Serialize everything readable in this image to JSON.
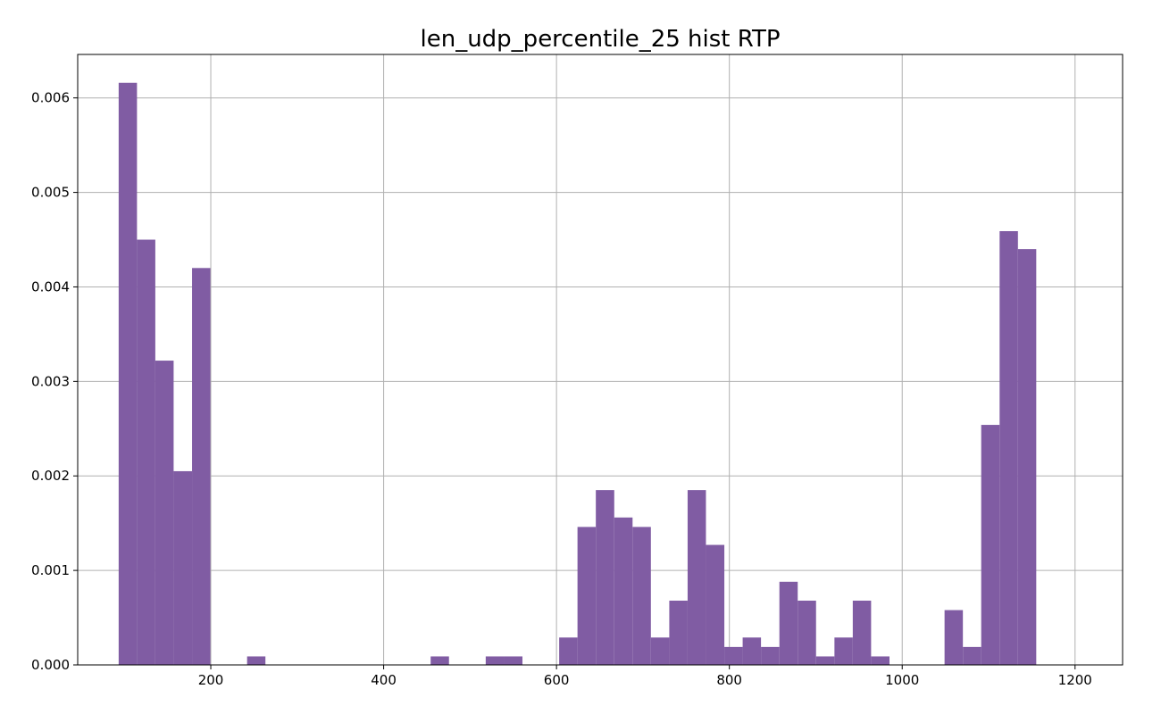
{
  "chart_data": {
    "type": "bar",
    "title": "len_udp_percentile_25 hist RTP",
    "xlabel": "",
    "ylabel": "",
    "xlim": [
      46,
      1255
    ],
    "ylim": [
      0,
      0.00646
    ],
    "grid": true,
    "bar_color": "#805ca3",
    "x_ticks": [
      {
        "value": 200,
        "label": "200"
      },
      {
        "value": 400,
        "label": "400"
      },
      {
        "value": 600,
        "label": "600"
      },
      {
        "value": 800,
        "label": "800"
      },
      {
        "value": 1000,
        "label": "1000"
      },
      {
        "value": 1200,
        "label": "1200"
      }
    ],
    "y_ticks": [
      {
        "value": 0.0,
        "label": "0.000"
      },
      {
        "value": 0.001,
        "label": "0.001"
      },
      {
        "value": 0.002,
        "label": "0.002"
      },
      {
        "value": 0.003,
        "label": "0.003"
      },
      {
        "value": 0.004,
        "label": "0.004"
      },
      {
        "value": 0.005,
        "label": "0.005"
      },
      {
        "value": 0.006,
        "label": "0.006"
      }
    ],
    "bins": [
      {
        "x0": 93.4,
        "x1": 114.6,
        "value": 0.00616
      },
      {
        "x0": 114.6,
        "x1": 135.8,
        "value": 0.0045
      },
      {
        "x0": 135.8,
        "x1": 157.0,
        "value": 0.00322
      },
      {
        "x0": 157.0,
        "x1": 178.3,
        "value": 0.00205
      },
      {
        "x0": 178.3,
        "x1": 199.5,
        "value": 0.0042
      },
      {
        "x0": 242.0,
        "x1": 263.2,
        "value": 9e-05
      },
      {
        "x0": 454.4,
        "x1": 475.6,
        "value": 9e-05
      },
      {
        "x0": 518.1,
        "x1": 539.4,
        "value": 9e-05
      },
      {
        "x0": 539.4,
        "x1": 560.6,
        "value": 9e-05
      },
      {
        "x0": 603.1,
        "x1": 624.3,
        "value": 0.00029
      },
      {
        "x0": 624.3,
        "x1": 645.5,
        "value": 0.00146
      },
      {
        "x0": 645.5,
        "x1": 666.8,
        "value": 0.00185
      },
      {
        "x0": 666.8,
        "x1": 688.0,
        "value": 0.00156
      },
      {
        "x0": 688.0,
        "x1": 709.2,
        "value": 0.00146
      },
      {
        "x0": 709.2,
        "x1": 730.5,
        "value": 0.00029
      },
      {
        "x0": 730.5,
        "x1": 751.7,
        "value": 0.00068
      },
      {
        "x0": 751.7,
        "x1": 772.9,
        "value": 0.00185
      },
      {
        "x0": 772.9,
        "x1": 794.2,
        "value": 0.00127
      },
      {
        "x0": 794.2,
        "x1": 815.4,
        "value": 0.00019
      },
      {
        "x0": 815.4,
        "x1": 836.6,
        "value": 0.00029
      },
      {
        "x0": 836.6,
        "x1": 857.9,
        "value": 0.00019
      },
      {
        "x0": 857.9,
        "x1": 879.1,
        "value": 0.00088
      },
      {
        "x0": 879.1,
        "x1": 900.3,
        "value": 0.00068
      },
      {
        "x0": 900.3,
        "x1": 921.6,
        "value": 9e-05
      },
      {
        "x0": 921.6,
        "x1": 942.8,
        "value": 0.00029
      },
      {
        "x0": 942.8,
        "x1": 964.0,
        "value": 0.00068
      },
      {
        "x0": 964.0,
        "x1": 985.3,
        "value": 9e-05
      },
      {
        "x0": 1049.0,
        "x1": 1070.2,
        "value": 0.00058
      },
      {
        "x0": 1070.2,
        "x1": 1091.4,
        "value": 0.00019
      },
      {
        "x0": 1091.4,
        "x1": 1112.7,
        "value": 0.00254
      },
      {
        "x0": 1112.7,
        "x1": 1133.9,
        "value": 0.00459
      },
      {
        "x0": 1133.9,
        "x1": 1155.1,
        "value": 0.0044
      }
    ]
  }
}
